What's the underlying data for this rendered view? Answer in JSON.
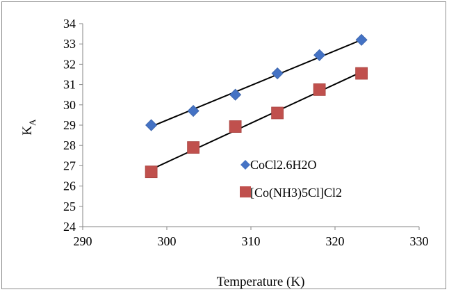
{
  "chart_data": {
    "type": "scatter",
    "xlabel": "Temperature (K)",
    "ylabel": "K",
    "ylabel_subscript": "A",
    "xlim": [
      290,
      330
    ],
    "ylim": [
      24,
      34
    ],
    "xticks": [
      "290",
      "300",
      "310",
      "320",
      "330"
    ],
    "yticks": [
      "24",
      "25",
      "26",
      "27",
      "28",
      "29",
      "30",
      "31",
      "32",
      "33",
      "34"
    ],
    "grid": false,
    "legend_position": "right-center",
    "series": [
      {
        "name": "CoCl2.6H2O",
        "marker": "diamond",
        "color": "#4472C4",
        "x": [
          298.15,
          303.15,
          308.15,
          313.15,
          318.15,
          323.15
        ],
        "y": [
          29.0,
          29.7,
          30.5,
          31.55,
          32.45,
          33.2
        ],
        "trendline": {
          "x": [
            298.15,
            323.15
          ],
          "y": [
            28.93,
            33.2
          ]
        }
      },
      {
        "name": "[Co(NH3)5Cl]Cl2",
        "marker": "square",
        "color": "#C0504D",
        "x": [
          298.15,
          303.15,
          308.15,
          313.15,
          318.15,
          323.15
        ],
        "y": [
          26.7,
          27.9,
          28.93,
          29.6,
          30.75,
          31.55
        ],
        "trendline": {
          "x": [
            298.15,
            323.15
          ],
          "y": [
            26.82,
            31.62
          ]
        }
      }
    ]
  }
}
